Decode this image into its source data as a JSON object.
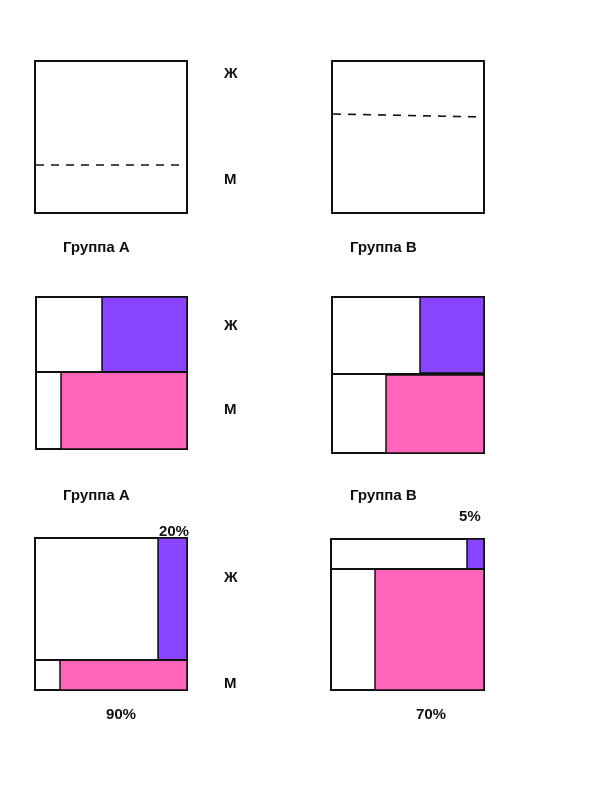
{
  "colors": {
    "women": "#8844ff",
    "men": "#ff66bb",
    "outline": "#111111",
    "background": "#ffffff"
  },
  "row_labels": {
    "women": "Ж",
    "men": "М"
  },
  "rows": [
    {
      "group_a": {
        "label": "Группа А",
        "women_share": 0.68,
        "women_rate": 0,
        "men_rate": 0
      },
      "group_b": {
        "label": "Группа В",
        "women_share": 0.35,
        "women_rate": 0,
        "men_rate": 0
      }
    },
    {
      "group_a": {
        "label": "Группа А",
        "women_share": 0.5,
        "women_rate": 0.56,
        "men_rate": 0.83
      },
      "group_b": {
        "label": "Группа В",
        "women_share": 0.5,
        "women_rate": 0.42,
        "men_rate": 0.64
      }
    },
    {
      "group_a": {
        "women_share": 0.8,
        "women_rate": 0.2,
        "men_rate": 0.9,
        "women_pct": "20%",
        "men_pct": "90%"
      },
      "group_b": {
        "women_share": 0.2,
        "women_rate": 0.05,
        "men_rate": 0.7,
        "women_pct": "5%",
        "men_pct": "70%"
      }
    }
  ]
}
